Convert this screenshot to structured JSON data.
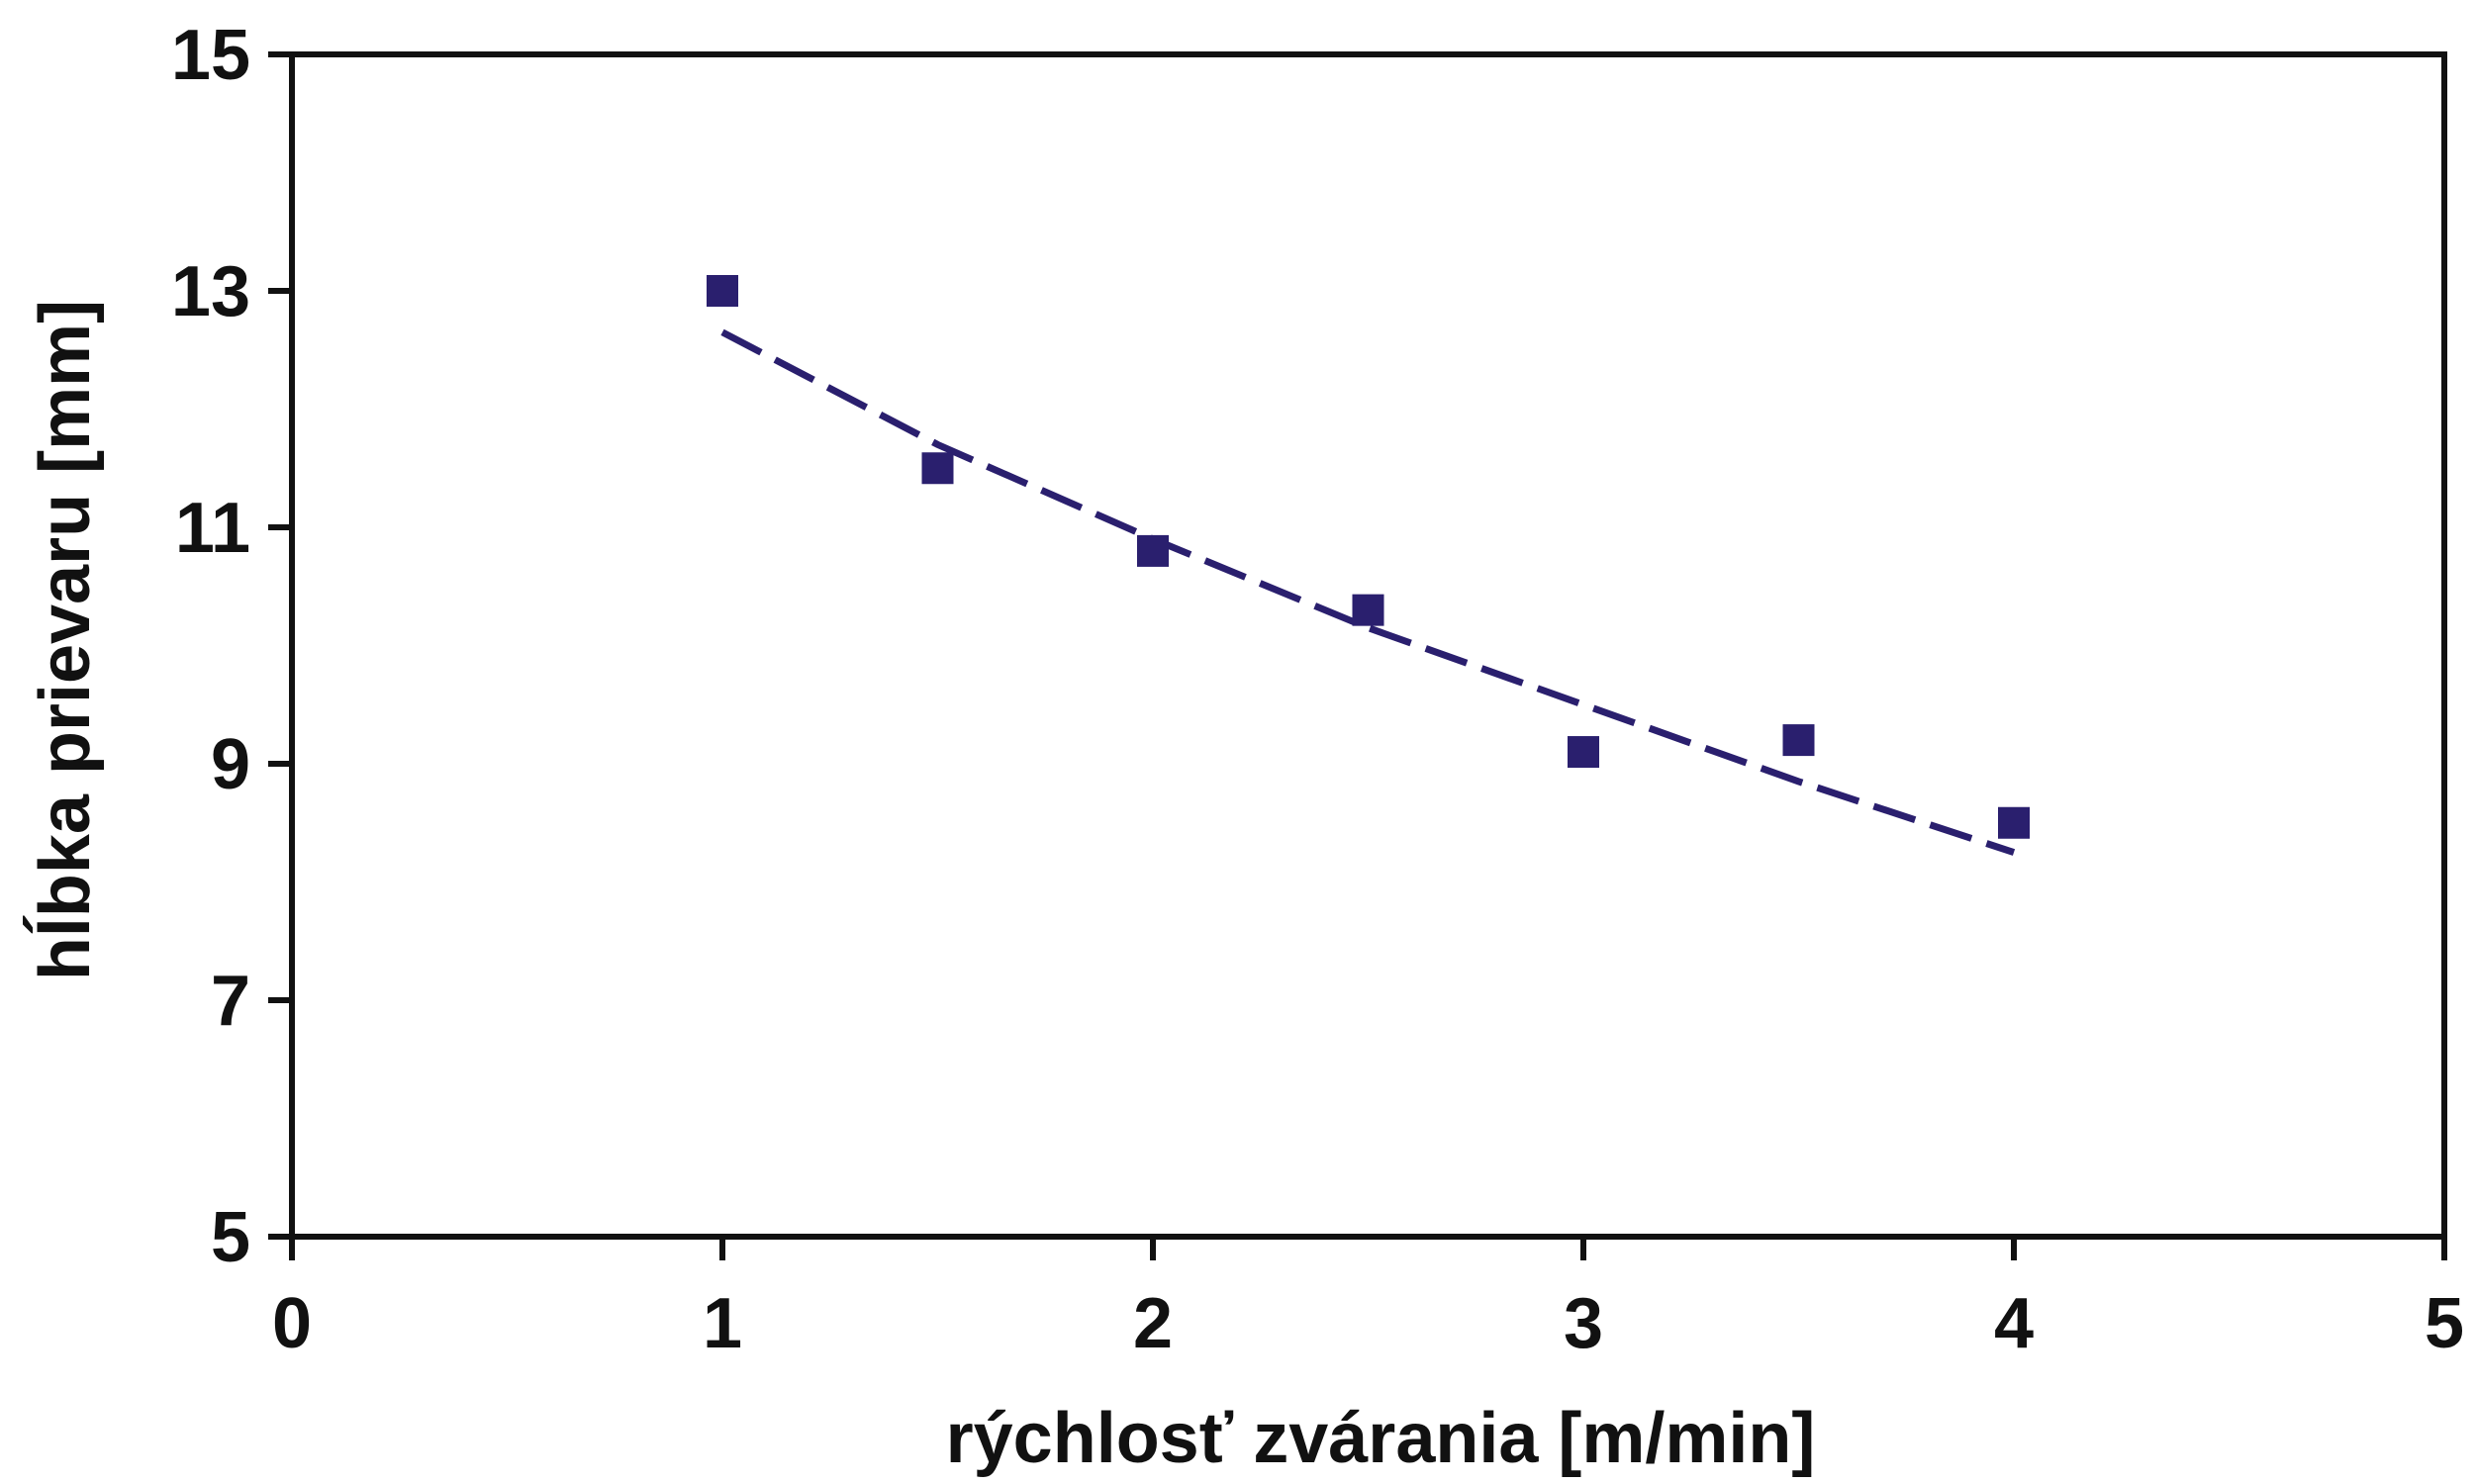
{
  "chart_data": {
    "type": "scatter",
    "title": "",
    "xlabel": "rýchlosť zvárania [m/min]",
    "ylabel": "hĺbka prievaru [mm]",
    "xlim": [
      0,
      5
    ],
    "ylim": [
      5,
      15
    ],
    "xticks": [
      "0",
      "1",
      "2",
      "3",
      "4",
      "5"
    ],
    "yticks": [
      "5",
      "7",
      "9",
      "11",
      "13",
      "15"
    ],
    "grid": false,
    "legend": "none",
    "series": [
      {
        "x": [
          1,
          1.5,
          2,
          2.5,
          3,
          3.5,
          4
        ],
        "y": [
          13.0,
          11.5,
          10.8,
          10.3,
          9.1,
          9.2,
          8.5
        ],
        "marker": "square",
        "color": "#2a1f6e"
      }
    ],
    "trendline": {
      "style": "dashed",
      "color": "#2a1f6e",
      "x": [
        1.0,
        1.5,
        2.0,
        2.5,
        3.0,
        3.5,
        4.0
      ],
      "y": [
        12.65,
        11.7,
        10.9,
        10.15,
        9.5,
        8.85,
        8.25
      ]
    }
  }
}
